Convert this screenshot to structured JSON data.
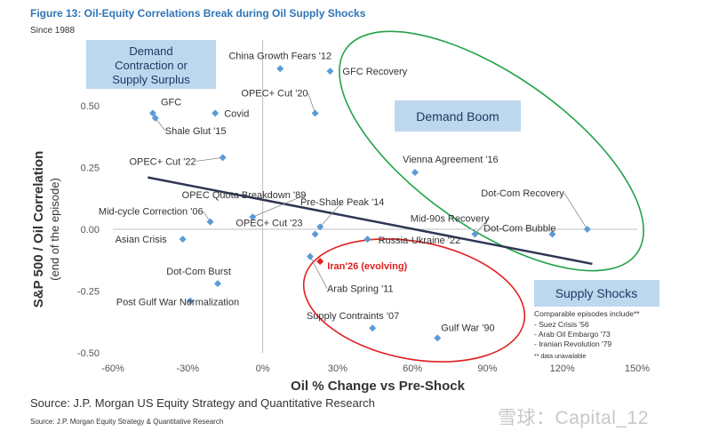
{
  "title": "Figure 13: Oil-Equity Correlations Break during Oil Supply Shocks",
  "subtitle": "Since 1988",
  "source_main": "Source: J.P. Morgan US Equity Strategy and Quantitative Research",
  "source_small": "Source: J.P. Morgan Equity Strategy & Quantitative Research",
  "watermark": "雪球：Capital_12",
  "chart_data": {
    "type": "scatter",
    "xlabel": "Oil % Change vs Pre-Shock",
    "ylabel_line1": "S&P 500 / Oil Correlation",
    "ylabel_line2": "(end of the episode)",
    "xlim": [
      -60,
      150
    ],
    "ylim": [
      -0.5,
      0.6
    ],
    "x_ticks": [
      -60,
      -30,
      0,
      30,
      60,
      90,
      120,
      150
    ],
    "x_tick_labels": [
      "-60%",
      "-30%",
      "0%",
      "30%",
      "60%",
      "90%",
      "120%",
      "150%"
    ],
    "y_ticks": [
      0.5,
      0.25,
      0.0,
      -0.25,
      -0.5
    ],
    "y_tick_labels": [
      "0.50",
      "0.25",
      "0.00",
      "-0.25",
      "-0.50"
    ],
    "grid": false,
    "points": [
      {
        "label": "China Growth Fears '12",
        "x": 7,
        "y": 0.65
      },
      {
        "label": "GFC Recovery",
        "x": 27,
        "y": 0.64
      },
      {
        "label": "GFC",
        "x": -44,
        "y": 0.47
      },
      {
        "label": "Shale Glut '15",
        "x": -43,
        "y": 0.45
      },
      {
        "label": "Covid",
        "x": -19,
        "y": 0.47
      },
      {
        "label": "OPEC+ Cut '20",
        "x": 21,
        "y": 0.47
      },
      {
        "label": "OPEC+ Cut '22",
        "x": -16,
        "y": 0.29
      },
      {
        "label": "Vienna Agreement '16",
        "x": 61,
        "y": 0.23
      },
      {
        "label": "OPEC Quota Breakdown '89",
        "x": -4,
        "y": 0.05
      },
      {
        "label": "Mid-cycle Correction '06",
        "x": -21,
        "y": 0.03
      },
      {
        "label": "Pre-Shale Peak '14",
        "x": 23,
        "y": 0.01
      },
      {
        "label": "Dot-Com Recovery",
        "x": 130,
        "y": 0.0
      },
      {
        "label": "Mid-90s Recovery",
        "x": 85,
        "y": -0.02
      },
      {
        "label": "Dot-Com Bubble",
        "x": 116,
        "y": -0.02
      },
      {
        "label": "Asian Crisis",
        "x": -32,
        "y": -0.04
      },
      {
        "label": "OPEC+ Cut '23",
        "x": 21,
        "y": -0.02
      },
      {
        "label": "Russia-Ukraine '22",
        "x": 42,
        "y": -0.04
      },
      {
        "label": "Arab Spring '11",
        "x": 19,
        "y": -0.11
      },
      {
        "label": "Iran'26 (evolving)",
        "x": 23,
        "y": -0.13,
        "highlight": true
      },
      {
        "label": "Dot-Com Burst",
        "x": -18,
        "y": -0.22
      },
      {
        "label": "Post Gulf War Normalization",
        "x": -29,
        "y": -0.29
      },
      {
        "label": "Supply Contraints '07",
        "x": 44,
        "y": -0.4
      },
      {
        "label": "Gulf War '90",
        "x": 70,
        "y": -0.44
      }
    ],
    "trend_line": {
      "x": [
        -46,
        132
      ],
      "y": [
        0.21,
        -0.14
      ]
    },
    "annotations": {
      "demand_contraction": "Demand Contraction or Supply Surplus",
      "demand_boom": "Demand Boom",
      "supply_shocks": "Supply Shocks",
      "comparable_title": "Comparable episodes include**",
      "comparable_items": [
        "- Suez Crisis '56",
        "- Arab Oil Embargo '73",
        "- Iranian Revolution '79"
      ],
      "comparable_note": "** data unavailable"
    },
    "colors": {
      "marker": "#5b9bd5",
      "highlight": "#e02020",
      "trend": "#2f3654",
      "green_ellipse": "#22a348",
      "red_ellipse": "#e02020",
      "box_fill": "#bdd7ee",
      "box_text": "#1f3864",
      "axis": "#c0c0c0"
    }
  }
}
